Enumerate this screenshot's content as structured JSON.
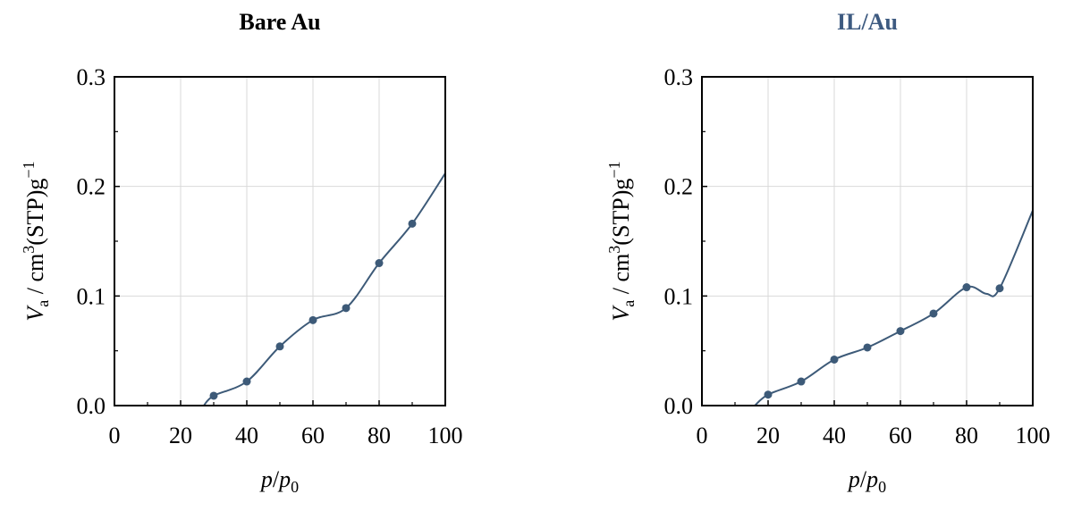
{
  "chart_data": [
    {
      "type": "line",
      "title": "Bare Au",
      "title_color": "#000000",
      "series_color": "#3d5a78",
      "xlabel": {
        "var": "p",
        "sep": "/",
        "var2": "p",
        "sub": "0"
      },
      "ylabel": {
        "var": "V",
        "sub": "a",
        "unit_pre": " / cm",
        "sup1": "3",
        "unit_mid": "(STP)g",
        "sup2": "−1"
      },
      "xlim": [
        0,
        100
      ],
      "ylim": [
        0,
        0.3
      ],
      "xticks": [
        "0",
        "20",
        "40",
        "60",
        "80",
        "100"
      ],
      "yticks": [
        "0.0",
        "0.1",
        "0.2",
        "0.3"
      ],
      "grid": true,
      "points": [
        {
          "x": 30,
          "y": 0.009
        },
        {
          "x": 40,
          "y": 0.022
        },
        {
          "x": 50,
          "y": 0.054
        },
        {
          "x": 60,
          "y": 0.078
        },
        {
          "x": 70,
          "y": 0.089
        },
        {
          "x": 80,
          "y": 0.13
        },
        {
          "x": 90,
          "y": 0.166
        }
      ],
      "curve": [
        {
          "x": 27,
          "y": 0.0
        },
        {
          "x": 30,
          "y": 0.009
        },
        {
          "x": 40,
          "y": 0.022
        },
        {
          "x": 50,
          "y": 0.054
        },
        {
          "x": 60,
          "y": 0.078
        },
        {
          "x": 70,
          "y": 0.089
        },
        {
          "x": 80,
          "y": 0.13
        },
        {
          "x": 90,
          "y": 0.166
        },
        {
          "x": 100,
          "y": 0.212
        }
      ]
    },
    {
      "type": "line",
      "title": "IL/Au",
      "title_color": "#3d5a80",
      "series_color": "#3d5a78",
      "xlabel": {
        "var": "p",
        "sep": "/",
        "var2": "p",
        "sub": "0"
      },
      "ylabel": {
        "var": "V",
        "sub": "a",
        "unit_pre": " / cm",
        "sup1": "3",
        "unit_mid": "(STP)g",
        "sup2": "−1"
      },
      "xlim": [
        0,
        100
      ],
      "ylim": [
        0,
        0.3
      ],
      "xticks": [
        "0",
        "20",
        "40",
        "60",
        "80",
        "100"
      ],
      "yticks": [
        "0.0",
        "0.1",
        "0.2",
        "0.3"
      ],
      "grid": true,
      "points": [
        {
          "x": 20,
          "y": 0.01
        },
        {
          "x": 30,
          "y": 0.022
        },
        {
          "x": 40,
          "y": 0.042
        },
        {
          "x": 50,
          "y": 0.053
        },
        {
          "x": 60,
          "y": 0.068
        },
        {
          "x": 70,
          "y": 0.084
        },
        {
          "x": 80,
          "y": 0.108
        },
        {
          "x": 90,
          "y": 0.107
        }
      ],
      "curve": [
        {
          "x": 16,
          "y": 0.0
        },
        {
          "x": 20,
          "y": 0.01
        },
        {
          "x": 30,
          "y": 0.022
        },
        {
          "x": 40,
          "y": 0.042
        },
        {
          "x": 50,
          "y": 0.053
        },
        {
          "x": 60,
          "y": 0.068
        },
        {
          "x": 70,
          "y": 0.084
        },
        {
          "x": 80,
          "y": 0.108
        },
        {
          "x": 86,
          "y": 0.102
        },
        {
          "x": 90,
          "y": 0.107
        },
        {
          "x": 100,
          "y": 0.178
        }
      ]
    }
  ]
}
